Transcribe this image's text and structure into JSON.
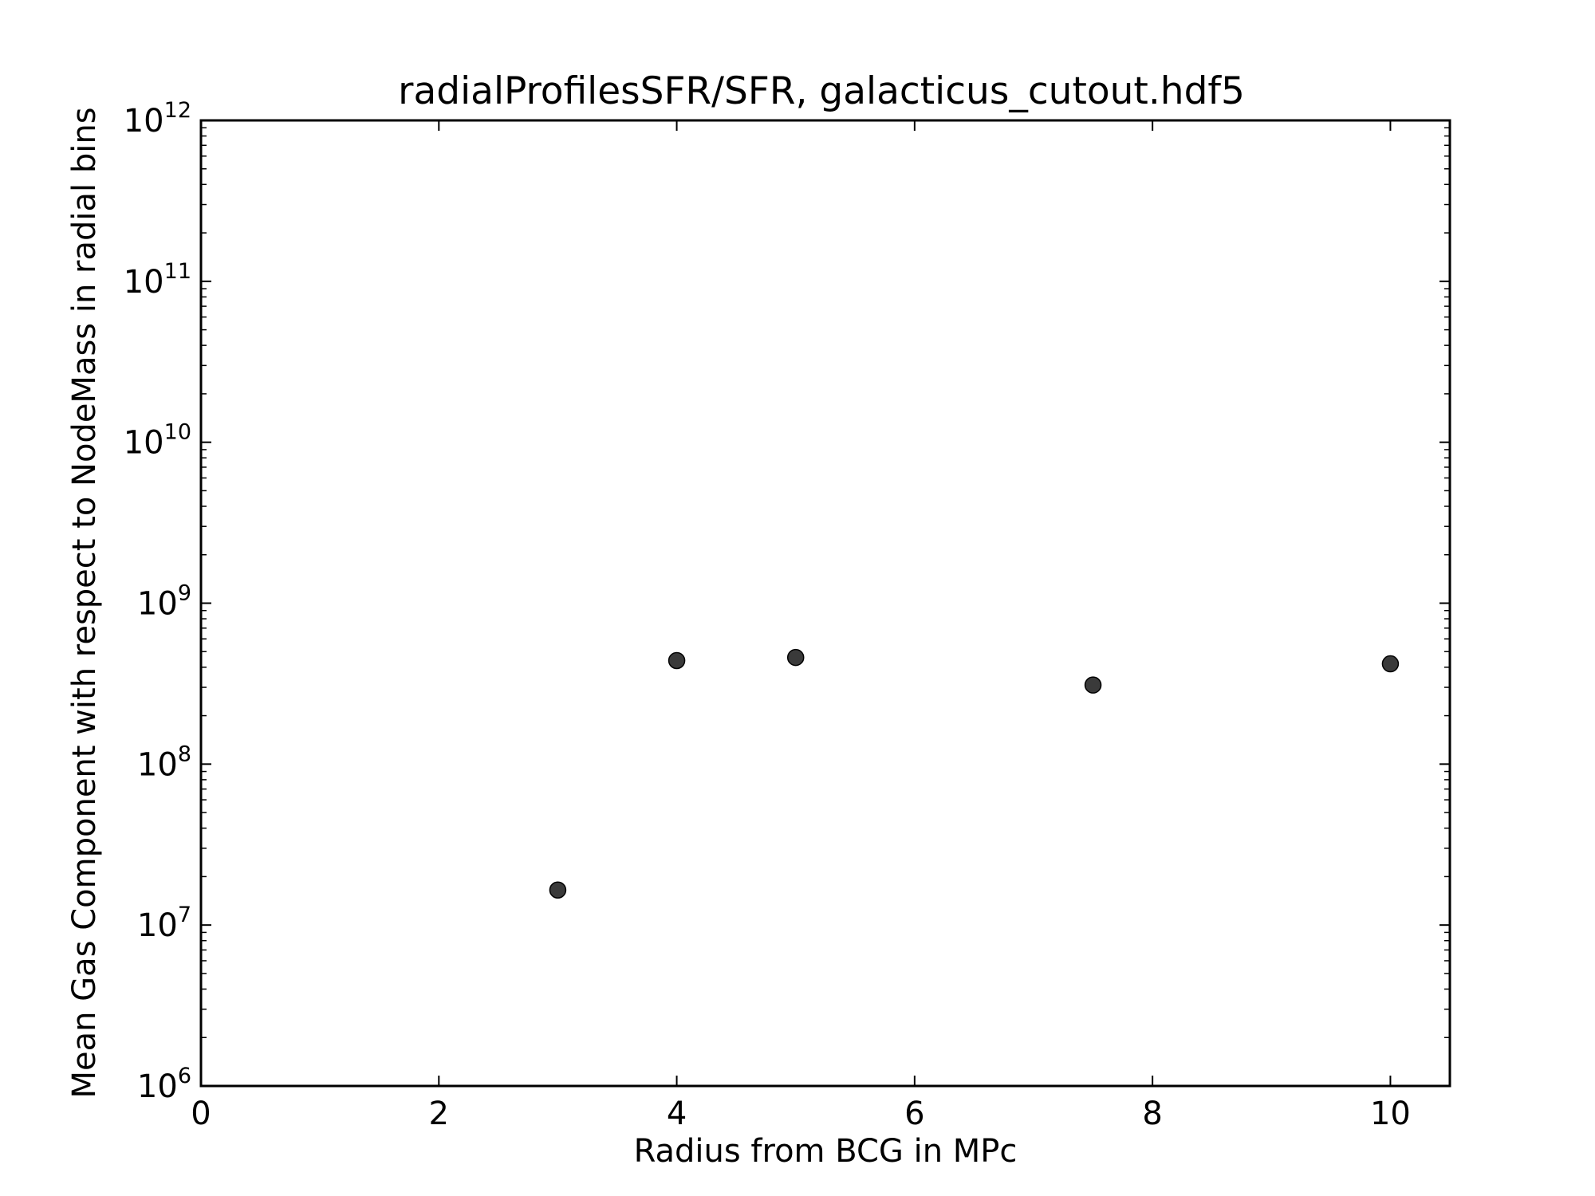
{
  "chart_data": {
    "type": "scatter",
    "title": "radialProfilesSFR/SFR, galacticus_cutout.hdf5",
    "xlabel": "Radius from BCG in MPc",
    "ylabel": "Mean Gas Component with respect to NodeMass in radial bins",
    "xlim": [
      0,
      10.5
    ],
    "ylim": [
      1000000,
      1000000000000
    ],
    "yscale": "log",
    "grid": false,
    "x_ticks": [
      {
        "value": 0,
        "label": "0"
      },
      {
        "value": 2,
        "label": "2"
      },
      {
        "value": 4,
        "label": "4"
      },
      {
        "value": 6,
        "label": "6"
      },
      {
        "value": 8,
        "label": "8"
      },
      {
        "value": 10,
        "label": "10"
      }
    ],
    "y_ticks": [
      {
        "exp": 6,
        "base": "10",
        "power": "6"
      },
      {
        "exp": 7,
        "base": "10",
        "power": "7"
      },
      {
        "exp": 8,
        "base": "10",
        "power": "8"
      },
      {
        "exp": 9,
        "base": "10",
        "power": "9"
      },
      {
        "exp": 10,
        "base": "10",
        "power": "10"
      },
      {
        "exp": 11,
        "base": "10",
        "power": "11"
      },
      {
        "exp": 12,
        "base": "10",
        "power": "12"
      }
    ],
    "series": [
      {
        "color": "#3a3a3a",
        "points": [
          {
            "x": 3,
            "y": 16500000
          },
          {
            "x": 4,
            "y": 440000000
          },
          {
            "x": 5,
            "y": 460000000
          },
          {
            "x": 7.5,
            "y": 310000000
          },
          {
            "x": 10,
            "y": 420000000
          }
        ]
      }
    ]
  }
}
